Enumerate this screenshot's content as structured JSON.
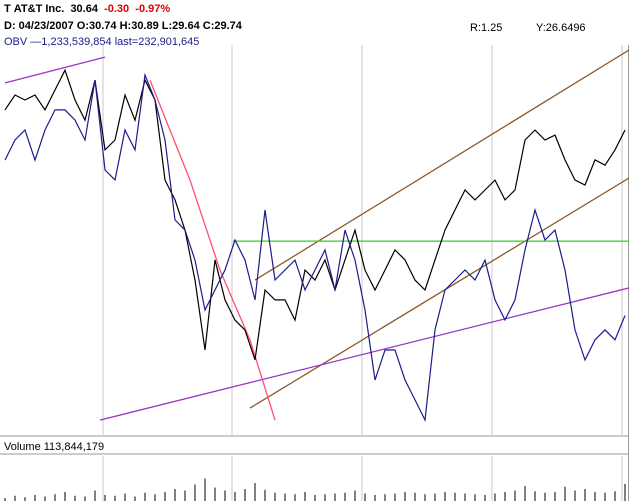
{
  "header": {
    "symbol": "T",
    "name": "AT&T Inc.",
    "last": "30.64",
    "change": "-0.30",
    "change_pct": "-0.97%",
    "date": "D: 04/23/2007",
    "open": "O:30.74",
    "high": "H:30.89",
    "low": "L:29.64",
    "close": "C:29.74",
    "r": "R:1.25",
    "y": "Y:26.6496",
    "obv": "OBV —1,233,539,854 last=232,901,645",
    "volume": "Volume 113,844,179"
  },
  "chart_data": {
    "type": "line",
    "x": [
      0,
      1,
      2,
      3,
      4,
      5,
      6,
      7,
      8,
      9,
      10,
      11,
      12,
      13,
      14,
      15,
      16,
      17,
      18,
      19,
      20,
      21,
      22,
      23,
      24,
      25,
      26,
      27,
      28,
      29,
      30,
      31,
      32,
      33,
      34,
      35,
      36,
      37,
      38,
      39,
      40,
      41,
      42,
      43,
      44,
      45,
      46,
      47,
      48,
      49,
      50,
      51,
      52,
      53,
      54,
      55,
      56,
      57,
      58,
      59,
      60,
      61,
      62
    ],
    "xlim": [
      -0.5,
      62.5
    ],
    "xticks": [
      9.8,
      22.7,
      35.7,
      48.7,
      61.7
    ],
    "ylim": [
      22,
      33
    ],
    "y2lim": [
      -380000000,
      1620000000
    ],
    "series": [
      {
        "color": "#000000",
        "values": [
          31.17,
          31.59,
          31.45,
          31.59,
          31.17,
          31.73,
          32.29,
          31.45,
          30.88,
          32.01,
          30.04,
          30.32,
          31.59,
          30.88,
          32.01,
          31.45,
          29.19,
          28.63,
          27.78,
          26.37,
          24.4,
          26.94,
          25.81,
          25.24,
          24.96,
          24.12,
          26.09,
          25.81,
          25.81,
          25.24,
          26.65,
          26.37,
          26.94,
          26.09,
          26.94,
          27.78,
          26.65,
          26.09,
          26.65,
          27.22,
          26.94,
          26.37,
          26.09,
          26.94,
          27.78,
          28.35,
          28.91,
          28.63,
          28.91,
          29.19,
          28.63,
          28.91,
          30.32,
          30.6,
          30.32,
          30.46,
          29.76,
          29.19,
          29.05,
          29.76,
          29.61,
          30.04,
          30.6
        ]
      },
      {
        "color": "#1c1c8c",
        "axis": "y2",
        "values": [
          1030000000,
          1133000000,
          1184000000,
          1030000000,
          1184000000,
          1287000000,
          1287000000,
          1235000000,
          1133000000,
          1440000000,
          979000000,
          928000000,
          1184000000,
          1082000000,
          1466000000,
          1338000000,
          1133000000,
          723000000,
          671000000,
          517000000,
          261000000,
          364000000,
          466000000,
          620000000,
          517000000,
          313000000,
          774000000,
          415000000,
          466000000,
          517000000,
          364000000,
          466000000,
          569000000,
          364000000,
          671000000,
          517000000,
          261000000,
          -98000000,
          56000000,
          56000000,
          -98000000,
          -200000000,
          -303000000,
          159000000,
          364000000,
          415000000,
          466000000,
          415000000,
          517000000,
          313000000,
          210000000,
          313000000,
          569000000,
          774000000,
          620000000,
          671000000,
          466000000,
          159000000,
          5000000,
          108000000,
          159000000,
          108000000,
          233000000
        ]
      }
    ],
    "volume": {
      "color": "#000000",
      "ylim": [
        0,
        300000000
      ],
      "values": [
        20000000,
        35000000,
        25000000,
        40000000,
        30000000,
        45000000,
        60000000,
        35000000,
        30000000,
        70000000,
        40000000,
        35000000,
        50000000,
        30000000,
        55000000,
        45000000,
        60000000,
        80000000,
        70000000,
        110000000,
        150000000,
        90000000,
        70000000,
        60000000,
        80000000,
        120000000,
        75000000,
        55000000,
        50000000,
        45000000,
        60000000,
        40000000,
        45000000,
        50000000,
        55000000,
        70000000,
        50000000,
        40000000,
        45000000,
        50000000,
        60000000,
        55000000,
        45000000,
        50000000,
        60000000,
        55000000,
        50000000,
        45000000,
        40000000,
        50000000,
        60000000,
        70000000,
        100000000,
        65000000,
        55000000,
        60000000,
        95000000,
        70000000,
        80000000,
        60000000,
        55000000,
        65000000,
        113844179
      ]
    },
    "lines": [
      {
        "color": "#8b5a2b",
        "points": [
          [
            25,
            26.37
          ],
          [
            62.4,
            32.86
          ]
        ]
      },
      {
        "color": "#8b5a2b",
        "points": [
          [
            24.5,
            22.76
          ],
          [
            62.4,
            29.25
          ]
        ]
      },
      {
        "color": "#9933cc",
        "points": [
          [
            9.5,
            22.42
          ],
          [
            62.4,
            26.15
          ]
        ]
      },
      {
        "color": "#9933cc",
        "points": [
          [
            0,
            31.93
          ],
          [
            10,
            32.66
          ]
        ]
      },
      {
        "color": "#33cc33",
        "points": [
          [
            22.8,
            27.47
          ],
          [
            62.4,
            27.47
          ]
        ]
      },
      {
        "color": "#ff4f6f",
        "points": [
          [
            14.5,
            32.01
          ],
          [
            18.5,
            29.19
          ],
          [
            21.5,
            26.65
          ],
          [
            24.5,
            24.68
          ],
          [
            27,
            22.42
          ]
        ]
      }
    ]
  }
}
